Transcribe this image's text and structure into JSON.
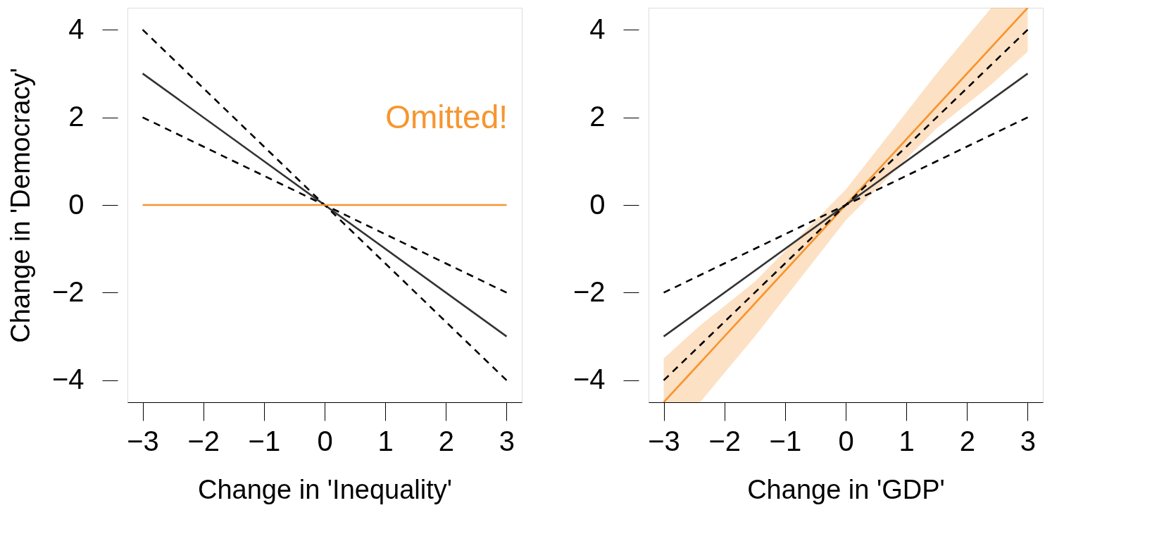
{
  "chart_data": [
    {
      "type": "line",
      "xlabel": "Change in 'Inequality'",
      "ylabel": "Change in 'Democracy'",
      "xlim": [
        -3.25,
        3.25
      ],
      "xticks": [
        -3,
        -2,
        -1,
        0,
        1,
        2,
        3
      ],
      "ylim": [
        -4.5,
        4.5
      ],
      "yticks": [
        -4,
        -2,
        0,
        2,
        4
      ],
      "grid": false,
      "annotations": [
        "Omitted!"
      ],
      "series": [
        {
          "color": "#333333",
          "line_style": "solid",
          "x": [
            -3,
            3
          ],
          "values": [
            3,
            -3
          ]
        },
        {
          "color": "#000000",
          "line_style": "dashed",
          "x": [
            -3,
            3
          ],
          "values": [
            4,
            -4
          ]
        },
        {
          "color": "#000000",
          "line_style": "dashed",
          "x": [
            -3,
            3
          ],
          "values": [
            2,
            -2
          ]
        },
        {
          "color": "#f7952f",
          "line_style": "solid",
          "x": [
            -3,
            3
          ],
          "values": [
            0,
            0
          ]
        }
      ]
    },
    {
      "type": "line",
      "xlabel": "Change in 'GDP'",
      "xlim": [
        -3.25,
        3.25
      ],
      "xticks": [
        -3,
        -2,
        -1,
        0,
        1,
        2,
        3
      ],
      "ylim": [
        -4.5,
        4.5
      ],
      "yticks": [
        -4,
        -2,
        0,
        2,
        4
      ],
      "grid": false,
      "series": [
        {
          "color": "#f7952f",
          "line_style": "solid",
          "x": [
            -3,
            -2.4,
            -1.5,
            0,
            1.5,
            2.4,
            3
          ],
          "values": [
            -4.5,
            -3.6,
            -2.25,
            0,
            2.25,
            3.6,
            4.5
          ],
          "lower": [
            -4.5,
            -4.5,
            -3.0,
            -0.35,
            1.75,
            2.75,
            3.5
          ],
          "upper": [
            -3.5,
            -2.75,
            -1.75,
            0.35,
            3.0,
            4.5,
            4.5
          ]
        },
        {
          "color": "#333333",
          "line_style": "solid",
          "x": [
            -3,
            3
          ],
          "values": [
            -3,
            3
          ]
        },
        {
          "color": "#000000",
          "line_style": "dashed",
          "x": [
            -3,
            3
          ],
          "values": [
            -2,
            2
          ]
        },
        {
          "color": "#000000",
          "line_style": "dashed",
          "x": [
            -3,
            3
          ],
          "values": [
            -4,
            4
          ]
        }
      ]
    }
  ]
}
